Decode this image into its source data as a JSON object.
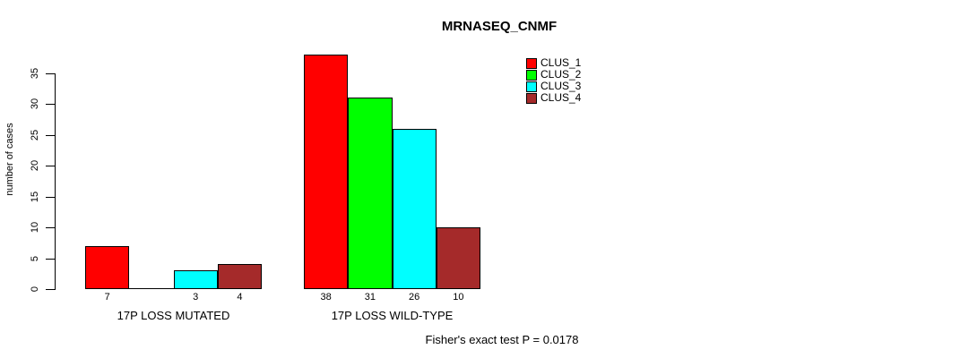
{
  "title": "MRNASEQ_CNMF",
  "footer": "Fisher's exact test P = 0.0178",
  "y_axis": {
    "label": "number of cases",
    "ticks": [
      0,
      5,
      10,
      15,
      20,
      25,
      30,
      35
    ]
  },
  "legend": {
    "items": [
      {
        "label": "CLUS_1",
        "color": "#FF0000"
      },
      {
        "label": "CLUS_2",
        "color": "#00FF00"
      },
      {
        "label": "CLUS_3",
        "color": "#00FFFF"
      },
      {
        "label": "CLUS_4",
        "color": "#A52A2A"
      }
    ]
  },
  "chart_data": {
    "type": "bar",
    "title": "MRNASEQ_CNMF",
    "xlabel": "",
    "ylabel": "number of cases",
    "categories": [
      "17P LOSS MUTATED",
      "17P LOSS WILD-TYPE"
    ],
    "series": [
      {
        "name": "CLUS_1",
        "color": "#FF0000",
        "values": [
          7,
          38
        ]
      },
      {
        "name": "CLUS_2",
        "color": "#00FF00",
        "values": [
          0,
          31
        ]
      },
      {
        "name": "CLUS_3",
        "color": "#00FFFF",
        "values": [
          3,
          26
        ]
      },
      {
        "name": "CLUS_4",
        "color": "#A52A2A",
        "values": [
          4,
          10
        ]
      }
    ],
    "bar_value_labels": [
      [
        7,
        null,
        3,
        4
      ],
      [
        38,
        31,
        26,
        10
      ]
    ],
    "yticks": [
      0,
      5,
      10,
      15,
      20,
      25,
      30,
      35
    ],
    "ylim": [
      0,
      38
    ],
    "grid": false,
    "legend_position": "top-right",
    "annotation": "Fisher's exact test P = 0.0178"
  }
}
